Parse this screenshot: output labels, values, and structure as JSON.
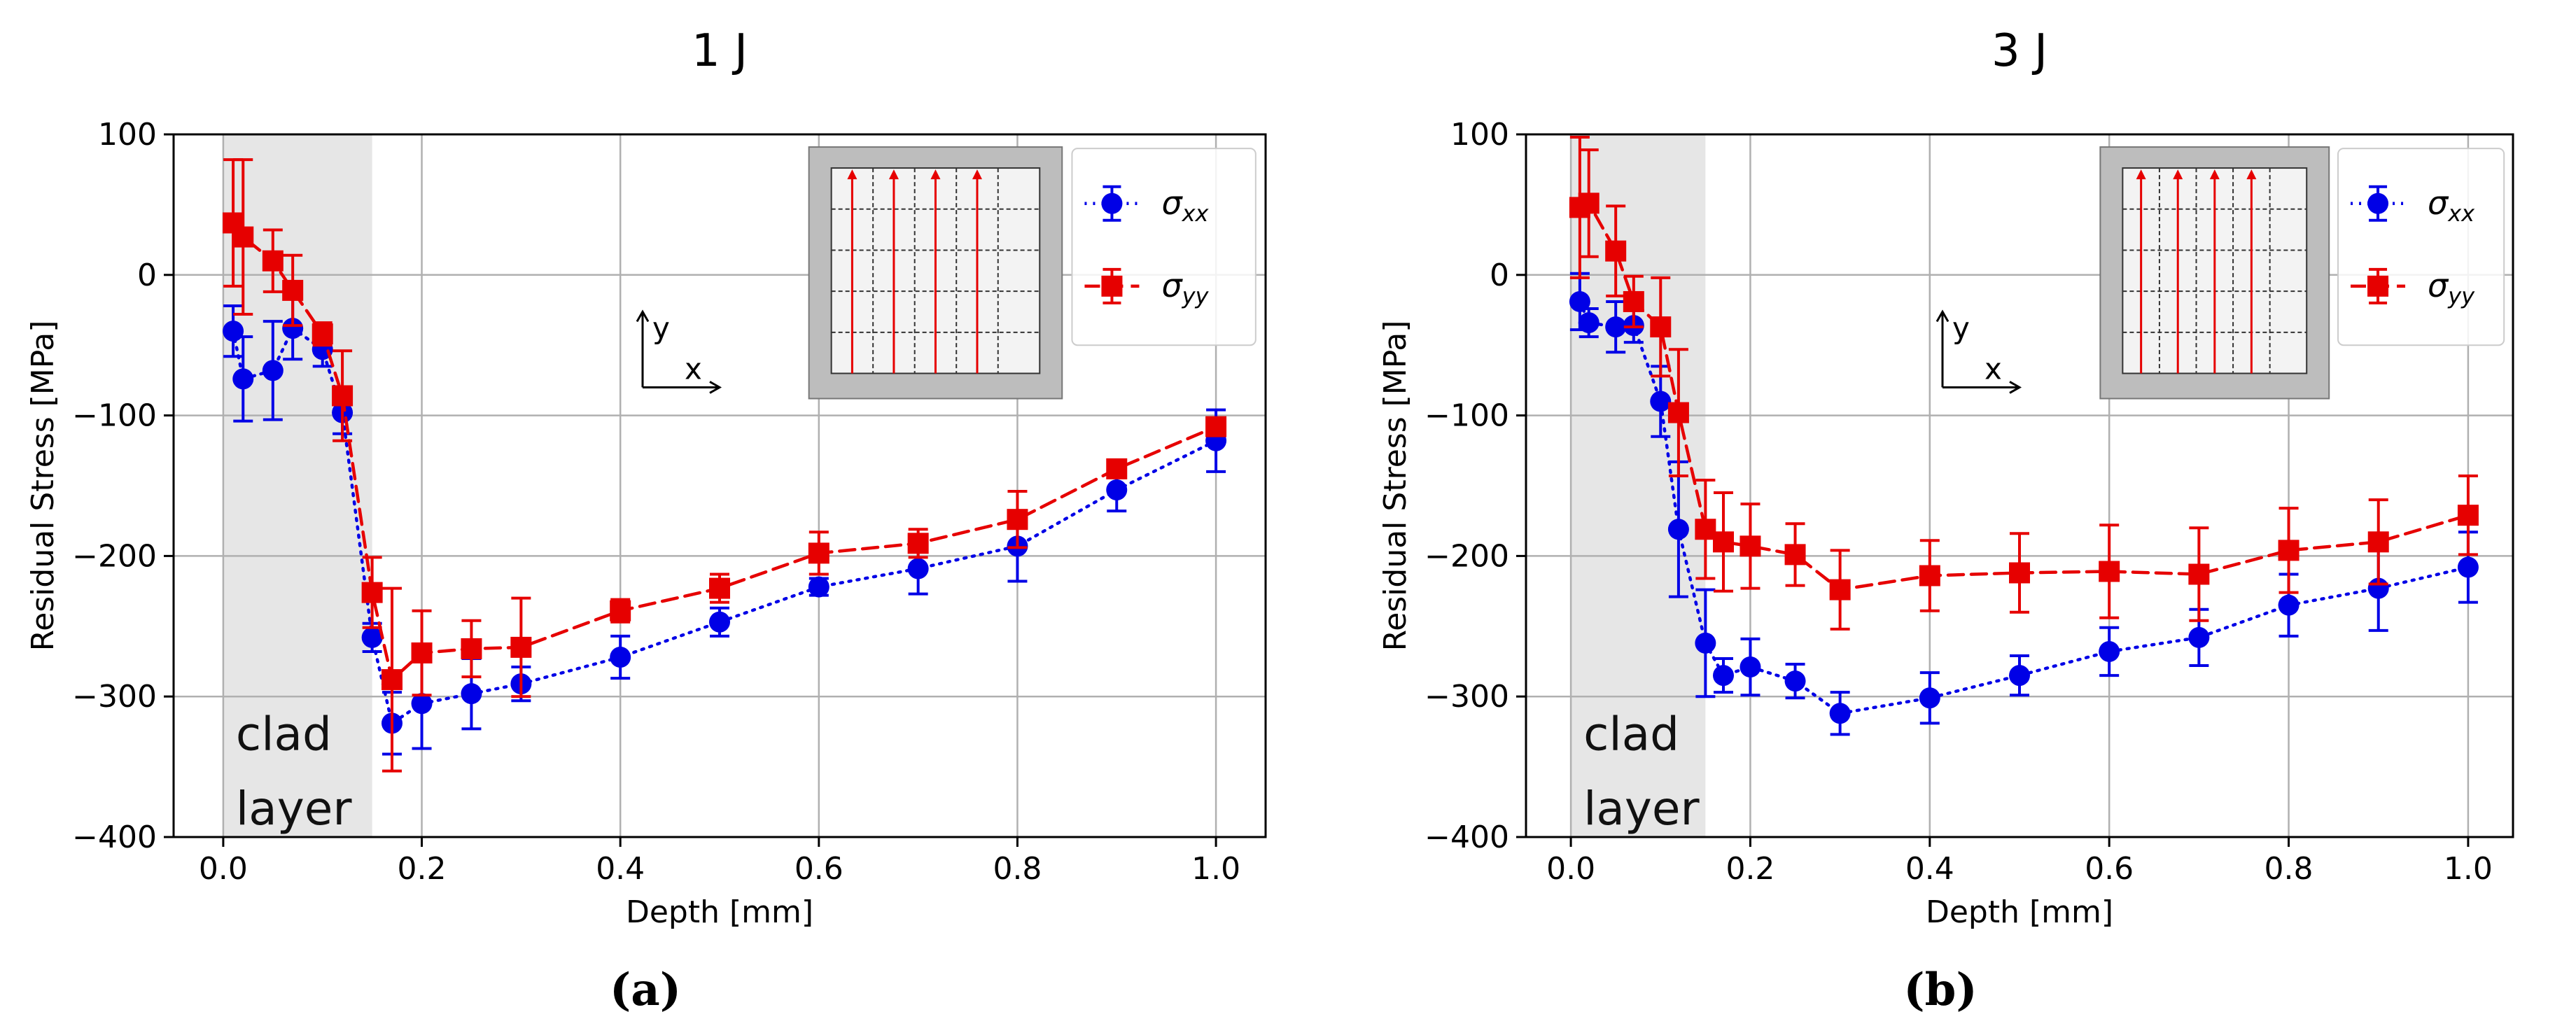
{
  "shared": {
    "xlabel": "Depth [mm]",
    "ylabel": "Residual Stress [MPa]",
    "clad_line1": "clad",
    "clad_line2": "layer",
    "legend_sigma": "σ",
    "legend_xx": "xx",
    "legend_yy": "yy",
    "inset_axis_x": "x",
    "inset_axis_y": "y",
    "colors": {
      "xx": "#0000e6",
      "yy": "#e60000",
      "grid": "#b0b0b0",
      "clad": "#e6e6e6",
      "inset_outer": "#bdbdbd",
      "inset_inner": "#f3f3f3"
    }
  },
  "chart_data": [
    {
      "type": "line",
      "title": "1 J",
      "caption": "(a)",
      "xlim": [
        -0.05,
        1.05
      ],
      "ylim": [
        -400,
        100
      ],
      "xticks": [
        0.0,
        0.2,
        0.4,
        0.6,
        0.8,
        1.0
      ],
      "xtick_labels": [
        "0.0",
        "0.2",
        "0.4",
        "0.6",
        "0.8",
        "1.0"
      ],
      "yticks": [
        100,
        0,
        -100,
        -200,
        -300,
        -400
      ],
      "ytick_labels": [
        "100",
        "0",
        "−100",
        "−200",
        "−300",
        "−400"
      ],
      "clad_span": [
        0.0,
        0.15
      ],
      "series": [
        {
          "name": "σxx",
          "style": "dotted",
          "marker": "circle",
          "x": [
            0.01,
            0.02,
            0.05,
            0.07,
            0.1,
            0.12,
            0.15,
            0.17,
            0.2,
            0.25,
            0.3,
            0.4,
            0.5,
            0.6,
            0.7,
            0.8,
            0.9,
            1.0
          ],
          "y": [
            -40,
            -74,
            -68,
            -38,
            -53,
            -98,
            -258,
            -319,
            -305,
            -298,
            -291,
            -272,
            -247,
            -222,
            -209,
            -193,
            -153,
            -118
          ],
          "err": [
            18,
            30,
            35,
            22,
            12,
            15,
            10,
            22,
            32,
            25,
            12,
            15,
            10,
            6,
            18,
            25,
            15,
            22
          ]
        },
        {
          "name": "σyy",
          "style": "dashed",
          "marker": "square",
          "x": [
            0.01,
            0.02,
            0.05,
            0.07,
            0.1,
            0.12,
            0.15,
            0.17,
            0.2,
            0.25,
            0.3,
            0.4,
            0.5,
            0.6,
            0.7,
            0.8,
            0.9,
            1.0
          ],
          "y": [
            37,
            27,
            10,
            -11,
            -42,
            -86,
            -226,
            -288,
            -269,
            -266,
            -265,
            -239,
            -223,
            -198,
            -191,
            -174,
            -138,
            -108
          ],
          "err": [
            45,
            55,
            22,
            25,
            8,
            32,
            25,
            65,
            30,
            20,
            35,
            8,
            10,
            15,
            10,
            20,
            5,
            5
          ]
        }
      ]
    },
    {
      "type": "line",
      "title": "3 J",
      "caption": "(b)",
      "xlim": [
        -0.05,
        1.05
      ],
      "ylim": [
        -400,
        100
      ],
      "xticks": [
        0.0,
        0.2,
        0.4,
        0.6,
        0.8,
        1.0
      ],
      "xtick_labels": [
        "0.0",
        "0.2",
        "0.4",
        "0.6",
        "0.8",
        "1.0"
      ],
      "yticks": [
        100,
        0,
        -100,
        -200,
        -300,
        -400
      ],
      "ytick_labels": [
        "100",
        "0",
        "−100",
        "−200",
        "−300",
        "−400"
      ],
      "clad_span": [
        0.0,
        0.15
      ],
      "series": [
        {
          "name": "σxx",
          "style": "dotted",
          "marker": "circle",
          "x": [
            0.01,
            0.02,
            0.05,
            0.07,
            0.1,
            0.12,
            0.15,
            0.17,
            0.2,
            0.25,
            0.3,
            0.4,
            0.5,
            0.6,
            0.7,
            0.8,
            0.9,
            1.0
          ],
          "y": [
            -19,
            -34,
            -37,
            -36,
            -90,
            -181,
            -262,
            -285,
            -279,
            -289,
            -312,
            -301,
            -285,
            -268,
            -258,
            -235,
            -223,
            -208
          ],
          "err": [
            20,
            10,
            18,
            12,
            25,
            48,
            38,
            12,
            20,
            12,
            15,
            18,
            14,
            17,
            20,
            22,
            30,
            25
          ]
        },
        {
          "name": "σyy",
          "style": "dashed",
          "marker": "square",
          "x": [
            0.01,
            0.02,
            0.05,
            0.07,
            0.1,
            0.12,
            0.15,
            0.17,
            0.2,
            0.25,
            0.3,
            0.4,
            0.5,
            0.6,
            0.7,
            0.8,
            0.9,
            1.0
          ],
          "y": [
            48,
            51,
            17,
            -19,
            -37,
            -98,
            -181,
            -190,
            -193,
            -199,
            -224,
            -214,
            -212,
            -211,
            -213,
            -196,
            -190,
            -171
          ],
          "err": [
            50,
            38,
            32,
            18,
            35,
            45,
            35,
            35,
            30,
            22,
            28,
            25,
            28,
            33,
            33,
            30,
            30,
            28
          ]
        }
      ]
    }
  ]
}
